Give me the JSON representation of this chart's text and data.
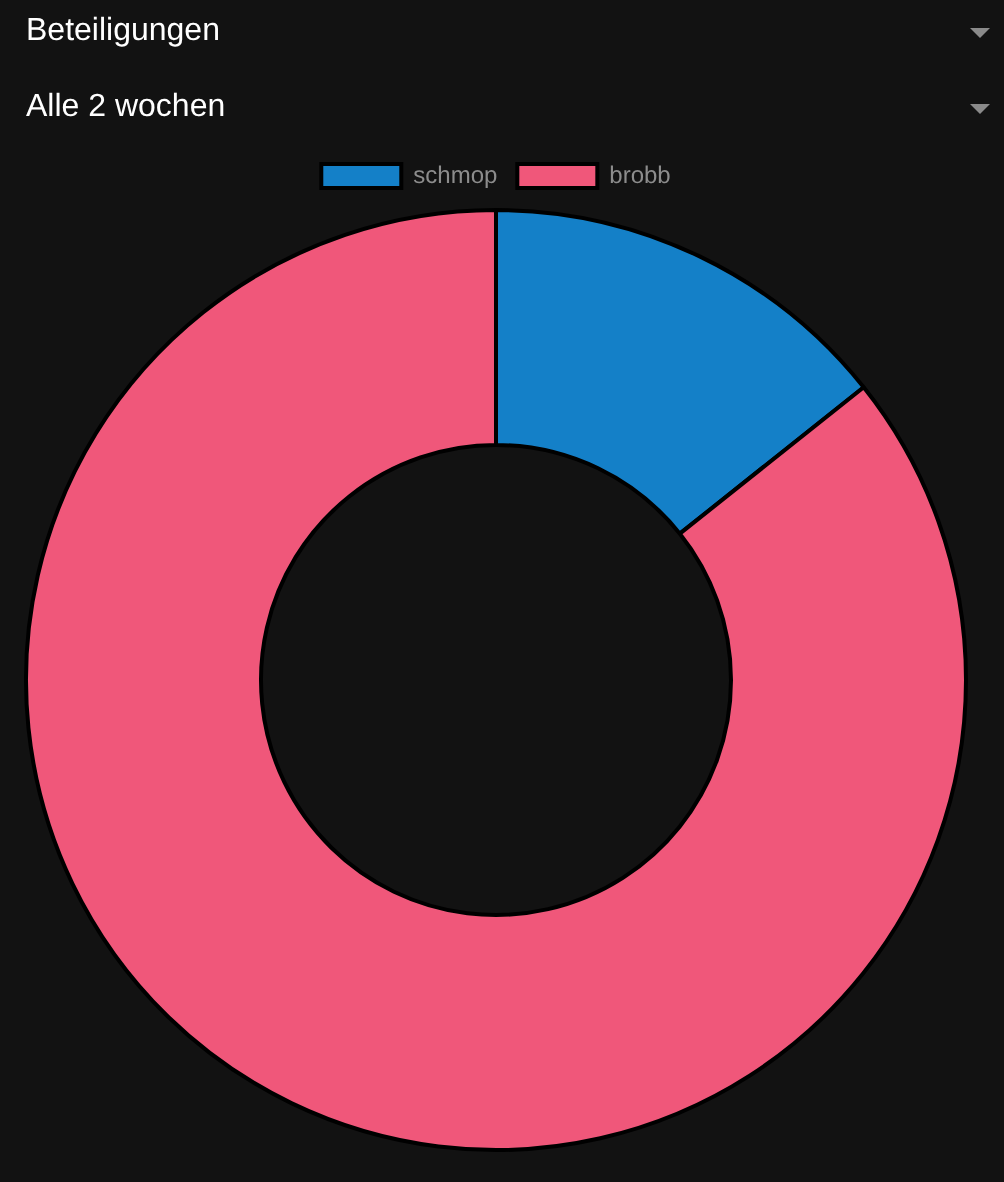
{
  "chart_data": {
    "type": "donut",
    "title": "Beteiligungen",
    "subtitle": "Alle 2 wochen",
    "categories": [
      "schmop",
      "brobb"
    ],
    "values": [
      14.3,
      85.7
    ],
    "colors": [
      "#1480c8",
      "#f0577a"
    ],
    "legend": "top"
  }
}
